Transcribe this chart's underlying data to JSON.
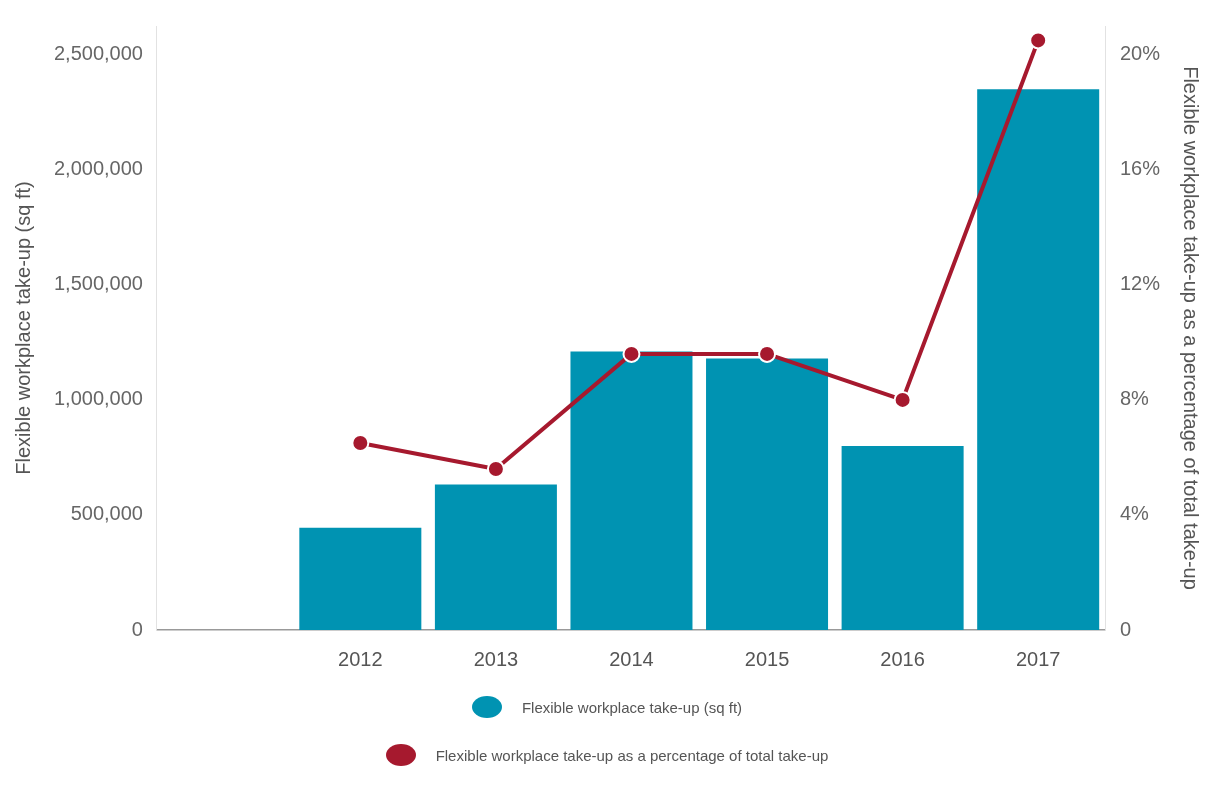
{
  "chart_data": {
    "type": "bar",
    "xlabel": null,
    "ylabel": "Flexible workplace take-up (sq ft)",
    "y2label": "Flexible workplace take-up as a percentage of total take-up",
    "categories": [
      null,
      "2012",
      "2013",
      "2014",
      "2015",
      "2016",
      "2017"
    ],
    "series": [
      {
        "name": "Flexible workplace take-up (sq ft)",
        "color": "#0093b2",
        "values": [
          null,
          444000,
          632000,
          1210000,
          1180000,
          800000,
          2350000
        ]
      },
      {
        "name": "Flexible workplace take-up as a percentage of total take-up",
        "type": "line",
        "axis": "y2",
        "color": "#a6192e",
        "values": [
          null,
          6.5,
          5.6,
          9.6,
          9.6,
          8.0,
          20.5
        ]
      }
    ],
    "ylim": [
      0,
      2625000
    ],
    "yticks": [
      0,
      {
        "value": 500000,
        "label": "500,000"
      },
      {
        "value": 1000000,
        "label": "1,000,000"
      },
      {
        "value": 1500000,
        "label": "1,500,000"
      },
      {
        "value": 2000000,
        "label": "2,000,000"
      },
      {
        "value": 2500000,
        "label": "2,500,000"
      }
    ],
    "y2lim": [
      0,
      21
    ],
    "y2ticks": [
      0,
      {
        "value": 4,
        "label": "4%"
      },
      {
        "value": 8,
        "label": "8%"
      },
      {
        "value": 12,
        "label": "12%"
      },
      {
        "value": 16,
        "label": "16%"
      },
      {
        "value": 20,
        "label": "20%"
      }
    ],
    "grid": false,
    "legend": "bottom",
    "marker": "circle",
    "line_style": "solid"
  }
}
